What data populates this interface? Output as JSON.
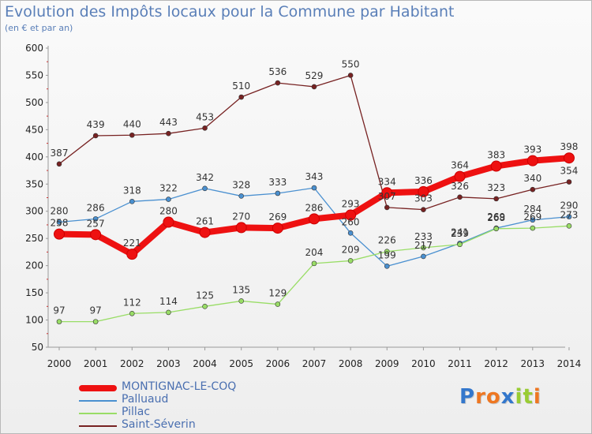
{
  "header": {
    "title": "Evolution des Impôts locaux pour la Commune par Habitant",
    "subtitle": "(en € et par an)"
  },
  "chart_data": {
    "type": "line",
    "title": "Evolution des Impôts locaux pour la Commune par Habitant",
    "subtitle": "(en € et par an)",
    "xlabel": "",
    "ylabel": "",
    "ylim": [
      50,
      600
    ],
    "yticks": [
      50,
      100,
      150,
      200,
      250,
      300,
      350,
      400,
      450,
      500,
      550,
      600
    ],
    "grid": false,
    "legend_position": "bottom-left",
    "categories": [
      "2000",
      "2001",
      "2002",
      "2003",
      "2004",
      "2005",
      "2006",
      "2007",
      "2008",
      "2009",
      "2010",
      "2011",
      "2012",
      "2013",
      "2014"
    ],
    "series": [
      {
        "name": "MONTIGNAC-LE-COQ",
        "color": "#ee1111",
        "values": [
          258,
          257,
          221,
          280,
          261,
          270,
          269,
          286,
          293,
          334,
          336,
          364,
          383,
          393,
          398
        ]
      },
      {
        "name": "Palluaud",
        "color": "#4a90d0",
        "values": [
          280,
          286,
          318,
          322,
          342,
          328,
          333,
          343,
          260,
          199,
          217,
          241,
          269,
          284,
          290
        ]
      },
      {
        "name": "Pillac",
        "color": "#99dd66",
        "values": [
          97,
          97,
          112,
          114,
          125,
          135,
          129,
          204,
          209,
          226,
          233,
          239,
          268,
          269,
          273
        ]
      },
      {
        "name": "Saint-Séverin",
        "color": "#772222",
        "values": [
          387,
          439,
          440,
          443,
          453,
          510,
          536,
          529,
          550,
          307,
          303,
          326,
          323,
          340,
          354
        ]
      }
    ]
  },
  "logo": {
    "letters": [
      "P",
      "r",
      "o",
      "x",
      "i",
      "t",
      "i"
    ],
    "colors": [
      "#3377cc",
      "#ee7722",
      "#ee7722",
      "#3377cc",
      "#99cc33",
      "#99cc33",
      "#ee7722"
    ]
  }
}
